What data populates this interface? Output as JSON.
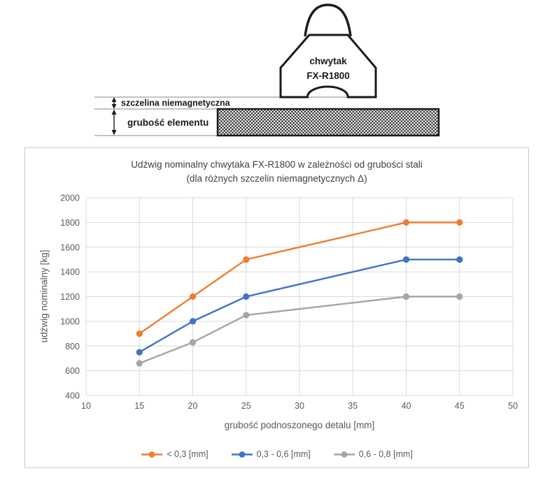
{
  "diagram": {
    "gripper_label_line1": "chwytak",
    "gripper_label_line2": "FX-R1800",
    "gap_label": "szczelina niemagnetyczna",
    "thickness_label": "grubość elementu"
  },
  "chart_data": {
    "type": "line",
    "title": "Udźwig nominalny chwytaka FX-R1800 w zależności od grubości stali",
    "subtitle": "(dla różnych szczelin niemagnetycznych Δ)",
    "xlabel": "grubość podnoszonego detalu [mm]",
    "ylabel": "udźwig nominalny [kg]",
    "x": [
      15,
      20,
      25,
      40,
      45
    ],
    "series": [
      {
        "name": "< 0,3 [mm]",
        "color": "#ED7D31",
        "values": [
          900,
          1200,
          1500,
          1800,
          1800
        ]
      },
      {
        "name": "0,3 - 0,6 [mm]",
        "color": "#4472C4",
        "values": [
          750,
          1000,
          1200,
          1500,
          1500
        ]
      },
      {
        "name": "0,6 - 0,8 [mm]",
        "color": "#A5A5A5",
        "values": [
          660,
          830,
          1050,
          1200,
          1200
        ]
      }
    ],
    "xlim": [
      10,
      50
    ],
    "xtick_step": 5,
    "ylim": [
      400,
      2000
    ],
    "ytick_step": 200,
    "grid": true,
    "legend_position": "bottom",
    "colors": {
      "grid": "#d9d9d9",
      "tick_text": "#595959",
      "title_text": "#404040"
    }
  }
}
